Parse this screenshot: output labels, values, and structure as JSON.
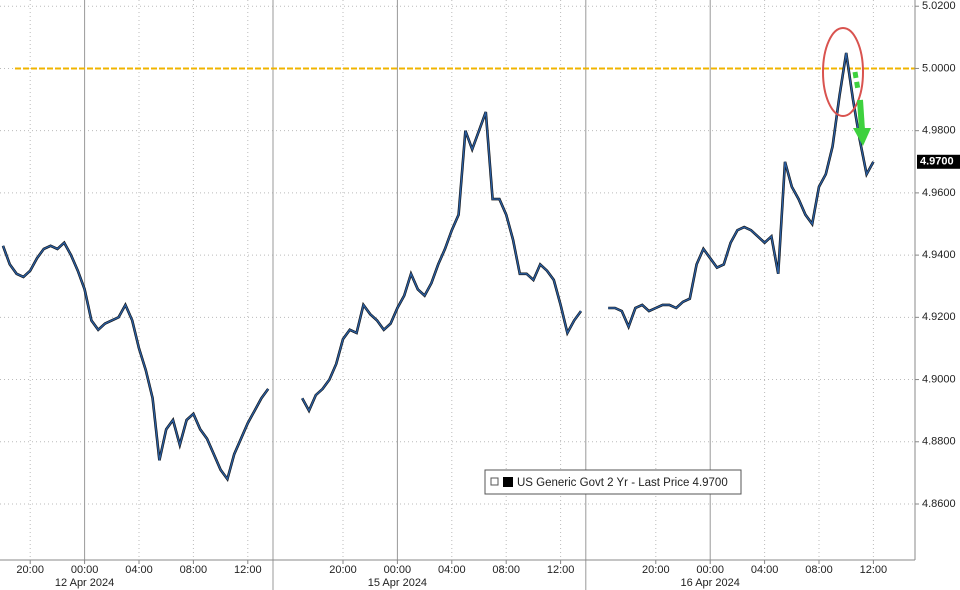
{
  "chart_data": {
    "type": "line",
    "x": [
      "2024-04-11 18:00",
      "2024-04-11 18:30",
      "2024-04-11 19:00",
      "2024-04-11 19:30",
      "2024-04-11 20:00",
      "2024-04-11 20:30",
      "2024-04-11 21:00",
      "2024-04-11 21:30",
      "2024-04-11 22:00",
      "2024-04-11 22:30",
      "2024-04-11 23:00",
      "2024-04-11 23:30",
      "2024-04-12 00:00",
      "2024-04-12 00:30",
      "2024-04-12 01:00",
      "2024-04-12 01:30",
      "2024-04-12 02:00",
      "2024-04-12 02:30",
      "2024-04-12 03:00",
      "2024-04-12 03:30",
      "2024-04-12 04:00",
      "2024-04-12 04:30",
      "2024-04-12 05:00",
      "2024-04-12 05:30",
      "2024-04-12 06:00",
      "2024-04-12 06:30",
      "2024-04-12 07:00",
      "2024-04-12 07:30",
      "2024-04-12 08:00",
      "2024-04-12 08:30",
      "2024-04-12 09:00",
      "2024-04-12 09:30",
      "2024-04-12 10:00",
      "2024-04-12 10:30",
      "2024-04-12 11:00",
      "2024-04-12 11:30",
      "2024-04-12 12:00",
      "2024-04-12 12:30",
      "2024-04-12 13:00",
      "2024-04-12 13:30",
      "2024-04-14 15:00",
      "2024-04-14 15:30",
      "2024-04-14 16:00",
      "2024-04-14 16:30",
      "2024-04-14 17:00",
      "2024-04-14 17:30",
      "2024-04-14 18:00",
      "2024-04-14 18:30",
      "2024-04-14 19:00",
      "2024-04-14 19:30",
      "2024-04-14 20:00",
      "2024-04-14 20:30",
      "2024-04-14 21:00",
      "2024-04-14 21:30",
      "2024-04-14 22:00",
      "2024-04-14 22:30",
      "2024-04-14 23:00",
      "2024-04-14 23:30",
      "2024-04-15 00:00",
      "2024-04-15 00:30",
      "2024-04-15 01:00",
      "2024-04-15 01:30",
      "2024-04-15 02:00",
      "2024-04-15 02:30",
      "2024-04-15 03:00",
      "2024-04-15 03:30",
      "2024-04-15 04:00",
      "2024-04-15 04:30",
      "2024-04-15 05:00",
      "2024-04-15 05:30",
      "2024-04-15 06:00",
      "2024-04-15 06:30",
      "2024-04-15 07:00",
      "2024-04-15 07:30",
      "2024-04-15 08:00",
      "2024-04-15 08:30",
      "2024-04-15 09:00",
      "2024-04-15 09:30",
      "2024-04-15 10:00",
      "2024-04-15 10:30",
      "2024-04-15 11:00",
      "2024-04-15 11:30",
      "2024-04-15 12:00",
      "2024-04-15 12:30",
      "2024-04-15 13:00",
      "2024-04-15 13:30",
      "2024-04-15 15:00",
      "2024-04-15 15:30",
      "2024-04-15 16:00",
      "2024-04-15 16:30",
      "2024-04-15 17:00",
      "2024-04-15 17:30",
      "2024-04-15 18:00",
      "2024-04-15 18:30",
      "2024-04-15 19:00",
      "2024-04-15 19:30",
      "2024-04-15 20:00",
      "2024-04-15 20:30",
      "2024-04-15 21:00",
      "2024-04-15 21:30",
      "2024-04-15 22:00",
      "2024-04-15 22:30",
      "2024-04-15 23:00",
      "2024-04-15 23:30",
      "2024-04-16 00:00",
      "2024-04-16 00:30",
      "2024-04-16 01:00",
      "2024-04-16 01:30",
      "2024-04-16 02:00",
      "2024-04-16 02:30",
      "2024-04-16 03:00",
      "2024-04-16 03:30",
      "2024-04-16 04:00",
      "2024-04-16 04:30",
      "2024-04-16 05:00",
      "2024-04-16 05:30",
      "2024-04-16 06:00",
      "2024-04-16 06:30",
      "2024-04-16 07:00",
      "2024-04-16 07:30",
      "2024-04-16 08:00",
      "2024-04-16 08:30",
      "2024-04-16 09:00",
      "2024-04-16 09:30",
      "2024-04-16 10:00",
      "2024-04-16 10:30",
      "2024-04-16 11:00",
      "2024-04-16 11:30",
      "2024-04-16 12:00"
    ],
    "series": [
      {
        "name": "US Generic Govt 2 Yr - Last Price 4.9700",
        "color": "#2a5d9f",
        "values": [
          4.943,
          4.937,
          4.934,
          4.933,
          4.935,
          4.939,
          4.942,
          4.943,
          4.942,
          4.944,
          4.94,
          4.935,
          4.929,
          4.919,
          4.916,
          4.918,
          4.919,
          4.92,
          4.924,
          4.919,
          4.91,
          4.903,
          4.894,
          4.874,
          4.884,
          4.887,
          4.879,
          4.887,
          4.889,
          4.884,
          4.881,
          4.876,
          4.871,
          4.868,
          4.876,
          4.881,
          4.886,
          4.89,
          4.894,
          4.897,
          null,
          null,
          null,
          null,
          4.894,
          4.89,
          4.895,
          4.897,
          4.9,
          4.905,
          4.913,
          4.916,
          4.915,
          4.924,
          4.921,
          4.919,
          4.916,
          4.918,
          4.923,
          4.927,
          4.934,
          4.929,
          4.927,
          4.931,
          4.937,
          4.942,
          4.948,
          4.953,
          4.98,
          4.974,
          4.98,
          4.986,
          4.958,
          4.958,
          4.953,
          4.945,
          4.934,
          4.934,
          4.932,
          4.937,
          4.935,
          4.932,
          4.924,
          4.915,
          4.919,
          4.922,
          null,
          null,
          null,
          4.923,
          4.923,
          4.922,
          4.917,
          4.923,
          4.924,
          4.922,
          4.923,
          4.924,
          4.924,
          4.923,
          4.925,
          4.926,
          4.937,
          4.942,
          4.939,
          4.936,
          4.937,
          4.944,
          4.948,
          4.949,
          4.948,
          4.946,
          4.944,
          4.946,
          4.934,
          4.97,
          4.962,
          4.958,
          4.953,
          4.95,
          4.962,
          4.966,
          4.975,
          4.991,
          5.005,
          4.99,
          4.977,
          4.966,
          4.97
        ]
      }
    ],
    "ylim": [
      4.842,
      5.022
    ],
    "yticks": [
      {
        "value": 4.86,
        "label": "4.8600"
      },
      {
        "value": 4.88,
        "label": "4.8800"
      },
      {
        "value": 4.9,
        "label": "4.9000"
      },
      {
        "value": 4.92,
        "label": "4.9200"
      },
      {
        "value": 4.94,
        "label": "4.9400"
      },
      {
        "value": 4.96,
        "label": "4.9600"
      },
      {
        "value": 4.98,
        "label": "4.9800"
      },
      {
        "value": 5.0,
        "label": "5.0000"
      },
      {
        "value": 5.02,
        "label": "5.0200"
      }
    ],
    "xticks": [
      {
        "value": "2024-04-11 20:00",
        "label": "20:00"
      },
      {
        "value": "2024-04-12 00:00",
        "label": "00:00"
      },
      {
        "value": "2024-04-12 04:00",
        "label": "04:00"
      },
      {
        "value": "2024-04-12 08:00",
        "label": "08:00"
      },
      {
        "value": "2024-04-12 12:00",
        "label": "12:00"
      },
      {
        "value": "2024-04-14 20:00",
        "label": "20:00"
      },
      {
        "value": "2024-04-15 00:00",
        "label": "00:00"
      },
      {
        "value": "2024-04-15 04:00",
        "label": "04:00"
      },
      {
        "value": "2024-04-15 08:00",
        "label": "08:00"
      },
      {
        "value": "2024-04-15 12:00",
        "label": "12:00"
      },
      {
        "value": "2024-04-15 20:00",
        "label": "20:00"
      },
      {
        "value": "2024-04-16 00:00",
        "label": "00:00"
      },
      {
        "value": "2024-04-16 04:00",
        "label": "04:00"
      },
      {
        "value": "2024-04-16 08:00",
        "label": "08:00"
      },
      {
        "value": "2024-04-16 12:00",
        "label": "12:00"
      }
    ],
    "xdates": [
      {
        "value": "2024-04-12 00:00",
        "label": "12 Apr 2024"
      },
      {
        "value": "2024-04-15 00:00",
        "label": "15 Apr 2024"
      },
      {
        "value": "2024-04-16 00:00",
        "label": "16 Apr 2024"
      }
    ],
    "reference_line": {
      "value": 5.0,
      "color": "#f0b400"
    },
    "last_price": {
      "value": 4.97,
      "label": "4.9700"
    },
    "grid": true
  }
}
